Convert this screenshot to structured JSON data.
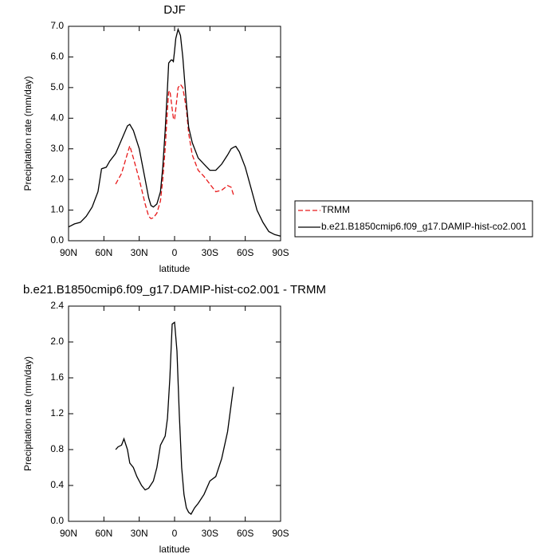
{
  "chart_data": [
    {
      "type": "line",
      "title": "DJF",
      "xlabel": "latitude",
      "ylabel": "Precipitation rate (mm/day)",
      "x": [
        90,
        85,
        80,
        75,
        70,
        65,
        62,
        58,
        55,
        50,
        45,
        40,
        38,
        35,
        30,
        25,
        22,
        20,
        18,
        15,
        12,
        10,
        8,
        6,
        5,
        4,
        3,
        2,
        1,
        0,
        -1,
        -3,
        -5,
        -7,
        -10,
        -12,
        -15,
        -20,
        -25,
        -30,
        -35,
        -40,
        -45,
        -48,
        -50,
        -52,
        -55,
        -60,
        -65,
        -70,
        -75,
        -80,
        -85,
        -90
      ],
      "series": [
        {
          "name": "TRMM",
          "color": "#e8191a",
          "dash": true,
          "values": [
            null,
            null,
            null,
            null,
            null,
            null,
            null,
            null,
            null,
            1.85,
            2.2,
            2.85,
            3.1,
            2.7,
            2.0,
            1.2,
            0.8,
            0.72,
            0.75,
            0.9,
            1.3,
            2.0,
            3.0,
            4.3,
            4.85,
            4.9,
            4.6,
            4.3,
            4.0,
            3.95,
            4.3,
            5.0,
            5.1,
            5.0,
            4.3,
            3.5,
            2.8,
            2.3,
            2.1,
            1.85,
            1.6,
            1.65,
            1.8,
            1.75,
            1.5,
            null,
            null,
            null,
            null,
            null,
            null,
            null,
            null,
            null
          ]
        },
        {
          "name": "b.e21.B1850cmip6.f09_g17.DAMIP-hist-co2.001",
          "color": "#000000",
          "dash": false,
          "values": [
            0.45,
            0.55,
            0.6,
            0.8,
            1.1,
            1.6,
            2.35,
            2.4,
            2.6,
            2.85,
            3.3,
            3.75,
            3.8,
            3.6,
            3.0,
            2.0,
            1.4,
            1.15,
            1.1,
            1.2,
            1.6,
            2.4,
            3.6,
            5.0,
            5.8,
            5.85,
            5.9,
            5.9,
            5.85,
            6.2,
            6.6,
            6.9,
            6.7,
            6.0,
            4.5,
            3.7,
            3.2,
            2.7,
            2.5,
            2.3,
            2.3,
            2.5,
            2.8,
            3.0,
            3.05,
            3.08,
            2.9,
            2.4,
            1.7,
            1.0,
            0.6,
            0.3,
            0.2,
            0.15
          ]
        }
      ],
      "xlim": [
        90,
        -90
      ],
      "xticks": [
        {
          "value": 90,
          "label": "90N"
        },
        {
          "value": 60,
          "label": "60N"
        },
        {
          "value": 30,
          "label": "30N"
        },
        0,
        {
          "value": -30,
          "label": "30S"
        },
        {
          "value": -60,
          "label": "60S"
        },
        {
          "value": -90,
          "label": "90S"
        }
      ],
      "ylim": [
        0,
        7
      ],
      "yticks": [
        {
          "value": 0,
          "label": "0.0"
        },
        {
          "value": 1,
          "label": "1.0"
        },
        {
          "value": 2,
          "label": "2.0"
        },
        {
          "value": 3,
          "label": "3.0"
        },
        {
          "value": 4,
          "label": "4.0"
        },
        {
          "value": 5,
          "label": "5.0"
        },
        {
          "value": 6,
          "label": "6.0"
        },
        {
          "value": 7,
          "label": "7.0"
        }
      ],
      "legend": "right"
    },
    {
      "type": "line",
      "title": "b.e21.B1850cmip6.f09_g17.DAMIP-hist-co2.001 - TRMM",
      "xlabel": "latitude",
      "ylabel": "Precipitation rate (mm/day)",
      "x": [
        50,
        48,
        45,
        43,
        40,
        38,
        35,
        32,
        28,
        25,
        22,
        18,
        15,
        12,
        10,
        8,
        6,
        4,
        2,
        0,
        -2,
        -4,
        -6,
        -8,
        -10,
        -12,
        -14,
        -17,
        -20,
        -25,
        -30,
        -35,
        -40,
        -45,
        -50
      ],
      "series": [
        {
          "color": "#000000",
          "dash": false,
          "values": [
            0.8,
            0.83,
            0.85,
            0.92,
            0.8,
            0.65,
            0.6,
            0.5,
            0.4,
            0.35,
            0.37,
            0.45,
            0.6,
            0.85,
            0.9,
            0.95,
            1.15,
            1.6,
            2.2,
            2.22,
            1.9,
            1.2,
            0.6,
            0.3,
            0.15,
            0.1,
            0.08,
            0.15,
            0.2,
            0.3,
            0.45,
            0.5,
            0.7,
            1.0,
            1.5
          ]
        }
      ],
      "xlim": [
        90,
        -90
      ],
      "xticks": [
        {
          "value": 90,
          "label": "90N"
        },
        {
          "value": 60,
          "label": "60N"
        },
        {
          "value": 30,
          "label": "30N"
        },
        0,
        {
          "value": -30,
          "label": "30S"
        },
        {
          "value": -60,
          "label": "60S"
        },
        {
          "value": -90,
          "label": "90S"
        }
      ],
      "ylim": [
        0,
        2.4
      ],
      "yticks": [
        {
          "value": 0,
          "label": "0.0"
        },
        {
          "value": 0.4,
          "label": "0.4"
        },
        {
          "value": 0.8,
          "label": "0.8"
        },
        {
          "value": 1.2,
          "label": "1.2"
        },
        {
          "value": 1.6,
          "label": "1.6"
        },
        {
          "value": 2.0,
          "label": "2.0"
        },
        {
          "value": 2.4,
          "label": "2.4"
        }
      ]
    }
  ]
}
